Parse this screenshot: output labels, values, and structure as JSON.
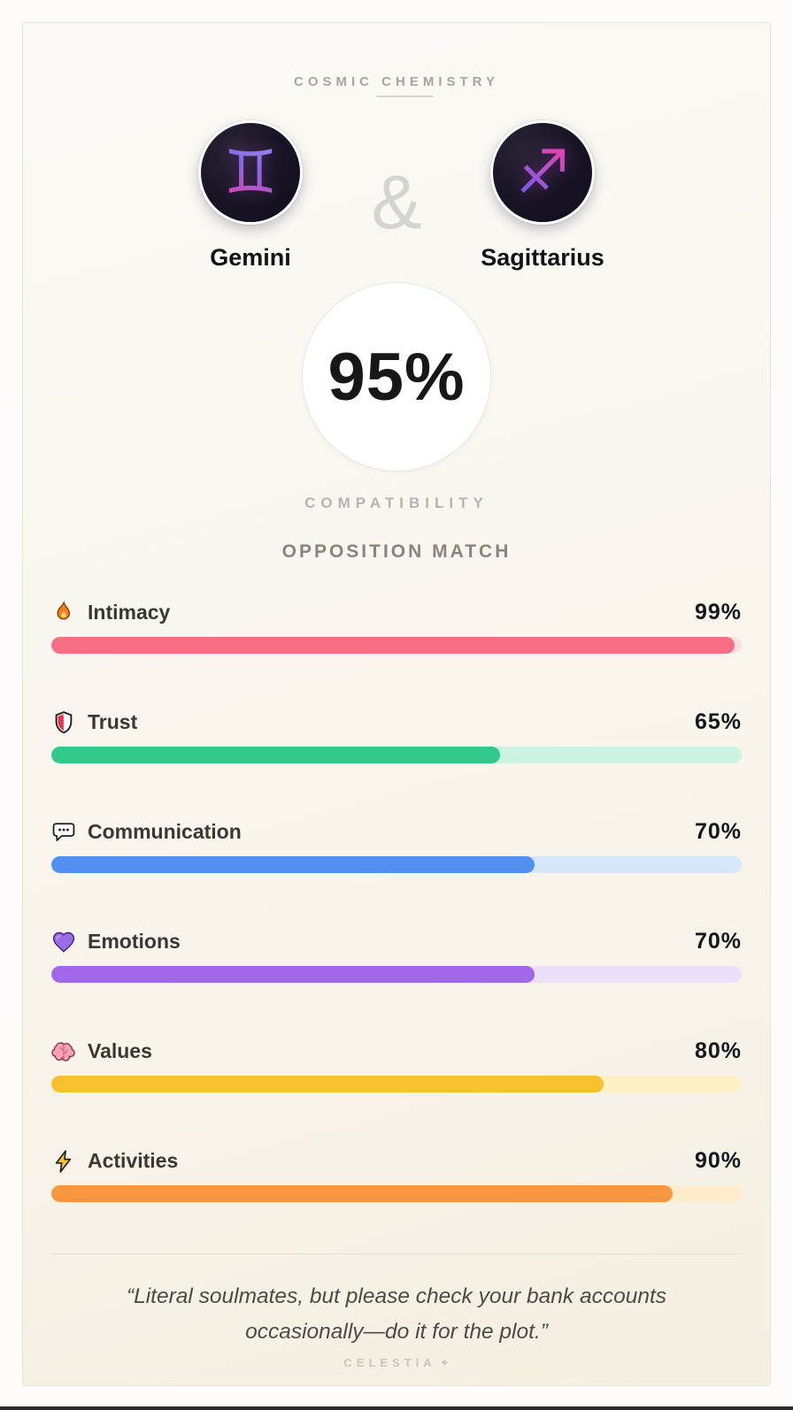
{
  "header": {
    "title": "COSMIC CHEMISTRY"
  },
  "pair": {
    "left": {
      "name": "Gemini",
      "symbol": "♊"
    },
    "right": {
      "name": "Sagittarius",
      "symbol": "♐"
    },
    "separator": "&"
  },
  "score": {
    "value": "95%",
    "caption": "COMPATIBILITY",
    "match_type": "OPPOSITION MATCH"
  },
  "stats": [
    {
      "label": "Intimacy",
      "value": 99,
      "display": "99%",
      "icon": "fire-icon",
      "fill": "#f96e84",
      "track": "#fcdfe5"
    },
    {
      "label": "Trust",
      "value": 65,
      "display": "65%",
      "icon": "shield-icon",
      "fill": "#2fc98c",
      "track": "#cbf4e3"
    },
    {
      "label": "Communication",
      "value": 70,
      "display": "70%",
      "icon": "speech-bubble-icon",
      "fill": "#5290f0",
      "track": "#d9e7fc"
    },
    {
      "label": "Emotions",
      "value": 70,
      "display": "70%",
      "icon": "heart-icon",
      "fill": "#a266e8",
      "track": "#ecdffc"
    },
    {
      "label": "Values",
      "value": 80,
      "display": "80%",
      "icon": "brain-icon",
      "fill": "#f7c02e",
      "track": "#fcf0c6"
    },
    {
      "label": "Activities",
      "value": 90,
      "display": "90%",
      "icon": "lightning-icon",
      "fill": "#f9963f",
      "track": "#feeccd"
    }
  ],
  "quote": {
    "text": "“Literal soulmates, but please check your bank accounts occasionally—do it for the plot.”",
    "attribution": "CELESTIA",
    "sparkle": "✦"
  },
  "colors": {
    "card_background_top": "#fcfaf7",
    "card_background_bottom": "#f5efe2",
    "heading_gray": "#aaa49b",
    "match_gray": "#8b8478"
  }
}
